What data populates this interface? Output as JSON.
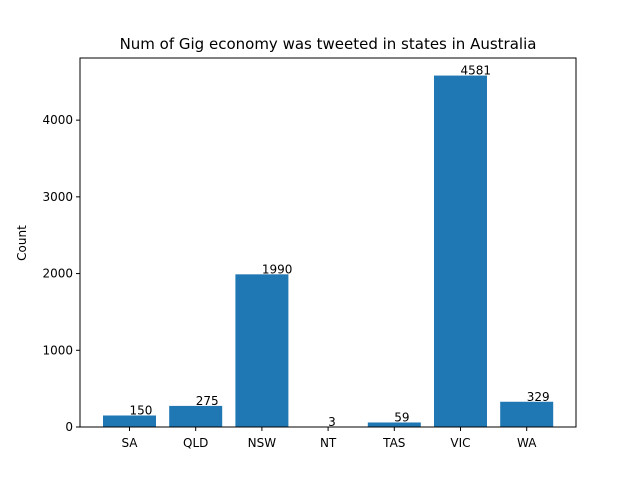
{
  "chart_data": {
    "type": "bar",
    "title": "Num of Gig economy was tweeted in states in Australia",
    "xlabel": "",
    "ylabel": "Count",
    "categories": [
      "SA",
      "QLD",
      "NSW",
      "NT",
      "TAS",
      "VIC",
      "WA"
    ],
    "values": [
      150,
      275,
      1990,
      3,
      59,
      4581,
      329
    ],
    "data_labels": [
      "150",
      "275",
      "1990",
      "3",
      "59",
      "4581",
      "329"
    ],
    "yticks": [
      0,
      1000,
      2000,
      3000,
      4000
    ],
    "ylim": [
      0,
      4810
    ],
    "grid": false,
    "legend": "none",
    "bar_color": "#1f77b4"
  }
}
